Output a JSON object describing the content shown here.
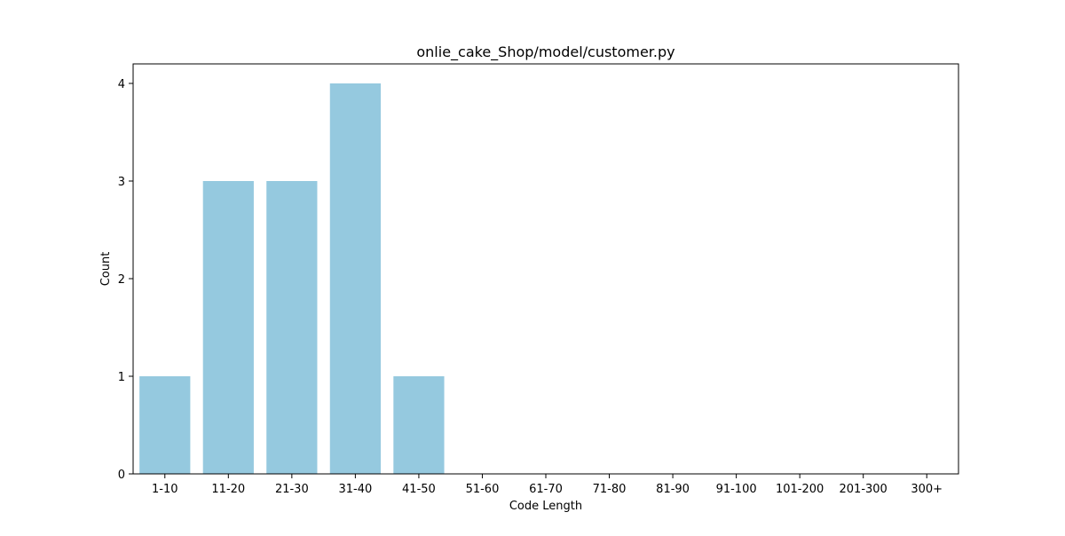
{
  "chart_data": {
    "type": "bar",
    "title": "onlie_cake_Shop/model/customer.py",
    "xlabel": "Code Length",
    "ylabel": "Count",
    "categories": [
      "1-10",
      "11-20",
      "21-30",
      "31-40",
      "41-50",
      "51-60",
      "61-70",
      "71-80",
      "81-90",
      "91-100",
      "101-200",
      "201-300",
      "300+"
    ],
    "values": [
      1,
      3,
      3,
      4,
      1,
      0,
      0,
      0,
      0,
      0,
      0,
      0,
      0
    ],
    "ylim": [
      0,
      4.2
    ],
    "yticks": [
      0,
      1,
      2,
      3,
      4
    ],
    "grid": false,
    "legend": "none",
    "colors": {
      "bar": "#95c9df",
      "axis": "#000000",
      "background": "#ffffff"
    }
  }
}
